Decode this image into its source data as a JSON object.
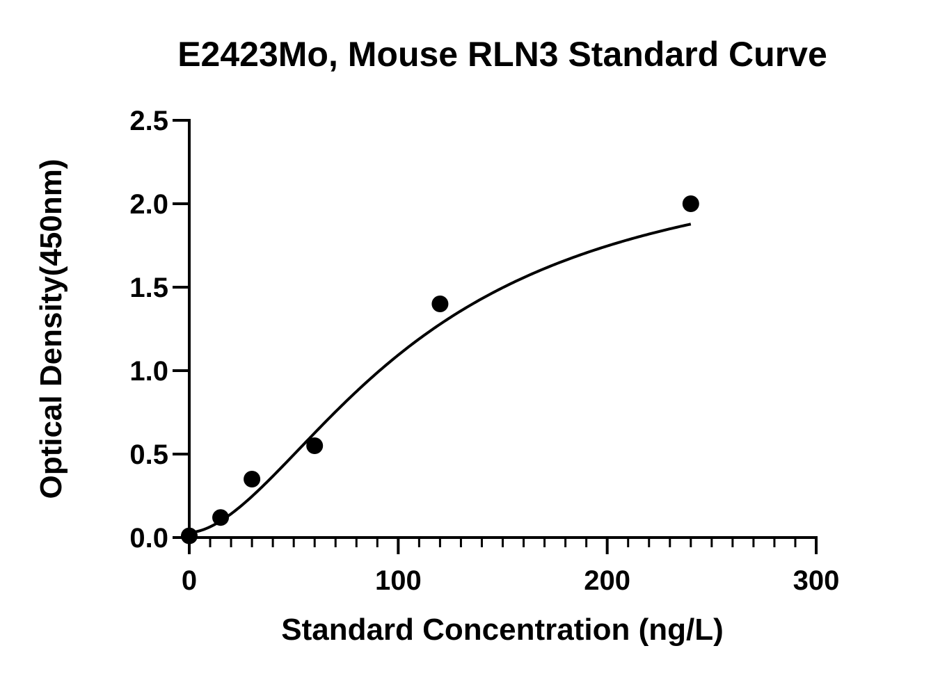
{
  "chart_data": {
    "type": "scatter",
    "title": "E2423Mo, Mouse RLN3 Standard Curve",
    "xlabel": "Standard Concentration (ng/L)",
    "ylabel": "Optical Density(450nm)",
    "xlim": [
      0,
      300
    ],
    "ylim": [
      0,
      2.5
    ],
    "x_ticks": [
      0,
      100,
      200,
      300
    ],
    "x_tick_labels": [
      "0",
      "100",
      "200",
      "300"
    ],
    "x_minor_step": 10,
    "y_ticks": [
      0,
      0.5,
      1.0,
      1.5,
      2.0,
      2.5
    ],
    "y_tick_labels": [
      "0.0",
      "0.5",
      "1.0",
      "1.5",
      "2.0",
      "2.5"
    ],
    "grid": false,
    "legend": "none",
    "series": [
      {
        "x": [
          0,
          15,
          30,
          60,
          120,
          240
        ],
        "y": [
          0.01,
          0.12,
          0.35,
          0.55,
          1.4,
          2.0
        ]
      }
    ],
    "fit_curve": {
      "type": "4PL",
      "bottom": 0.03,
      "top": 2.35,
      "ec50": 110,
      "hill": 1.75,
      "x_range": [
        0,
        240
      ]
    },
    "colors": {
      "points": "#000000",
      "curve": "#000000",
      "axes": "#000000"
    }
  }
}
